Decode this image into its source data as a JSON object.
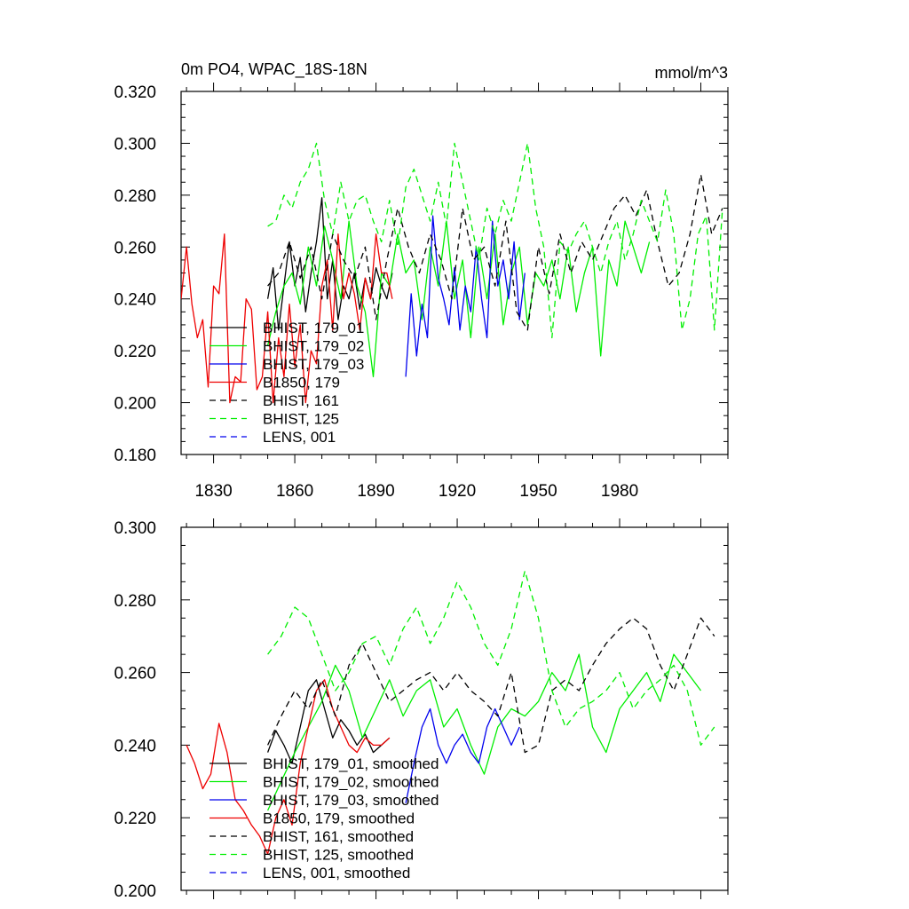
{
  "figure": {
    "title": "0m PO4, WPAC_18S-18N",
    "units": "mmol/m^3"
  },
  "colors": {
    "black": "#000000",
    "green": "#00ee00",
    "blue": "#0000ee",
    "red": "#ee0000"
  },
  "chart_data": [
    {
      "type": "line",
      "title": "0m PO4, WPAC_18S-18N",
      "units": "mmol/m^3",
      "xlim": [
        1818,
        2020
      ],
      "ylim": [
        0.18,
        0.32
      ],
      "xticks": [
        1830,
        1860,
        1890,
        1920,
        1950,
        1980
      ],
      "xtick_labels": [
        "1830",
        "1860",
        "1890",
        "1920",
        "1950",
        "1980"
      ],
      "yticks": [
        0.18,
        0.2,
        0.22,
        0.24,
        0.26,
        0.28,
        0.3,
        0.32
      ],
      "ytick_labels": [
        "0.180",
        "0.200",
        "0.220",
        "0.240",
        "0.260",
        "0.280",
        "0.300",
        "0.320"
      ],
      "legend_position": "bottom-left",
      "series": [
        {
          "name": "BHIST, 179_01",
          "color": "#000000",
          "dash": "solid",
          "x": [
            1850,
            1852,
            1854,
            1856,
            1858,
            1860,
            1862,
            1864,
            1866,
            1868,
            1870,
            1872,
            1874,
            1876,
            1878,
            1880,
            1882,
            1884,
            1886,
            1888,
            1890,
            1892,
            1894,
            1896
          ],
          "y": [
            0.24,
            0.252,
            0.228,
            0.245,
            0.262,
            0.245,
            0.256,
            0.235,
            0.25,
            0.262,
            0.279,
            0.24,
            0.255,
            0.232,
            0.245,
            0.24,
            0.25,
            0.236,
            0.248,
            0.24,
            0.252,
            0.245,
            0.24,
            0.25
          ]
        },
        {
          "name": "BHIST, 179_02",
          "color": "#00ee00",
          "dash": "solid",
          "x": [
            1850,
            1853,
            1856,
            1859,
            1862,
            1865,
            1868,
            1871,
            1874,
            1877,
            1880,
            1883,
            1886,
            1889,
            1892,
            1895,
            1898,
            1901,
            1904,
            1907,
            1910,
            1913,
            1916,
            1919,
            1922,
            1925,
            1928,
            1931,
            1934,
            1937,
            1940,
            1943,
            1946,
            1949,
            1952,
            1955,
            1958,
            1961,
            1964,
            1967,
            1970,
            1973,
            1976,
            1979,
            1982,
            1985,
            1988,
            1991
          ],
          "y": [
            0.222,
            0.235,
            0.245,
            0.25,
            0.238,
            0.26,
            0.245,
            0.268,
            0.255,
            0.24,
            0.27,
            0.245,
            0.235,
            0.21,
            0.25,
            0.245,
            0.265,
            0.25,
            0.255,
            0.232,
            0.26,
            0.245,
            0.27,
            0.24,
            0.255,
            0.225,
            0.26,
            0.24,
            0.265,
            0.23,
            0.25,
            0.26,
            0.23,
            0.25,
            0.245,
            0.255,
            0.24,
            0.26,
            0.235,
            0.25,
            0.26,
            0.218,
            0.255,
            0.245,
            0.27,
            0.26,
            0.25,
            0.262
          ]
        },
        {
          "name": "BHIST, 179_03",
          "color": "#0000ee",
          "dash": "solid",
          "x": [
            1901,
            1903,
            1905,
            1907,
            1909,
            1911,
            1913,
            1915,
            1917,
            1919,
            1921,
            1923,
            1925,
            1927,
            1929,
            1931,
            1933,
            1935,
            1937,
            1939,
            1941,
            1943,
            1945
          ],
          "y": [
            0.21,
            0.242,
            0.218,
            0.238,
            0.225,
            0.272,
            0.248,
            0.24,
            0.23,
            0.252,
            0.228,
            0.245,
            0.235,
            0.26,
            0.24,
            0.225,
            0.27,
            0.245,
            0.255,
            0.24,
            0.262,
            0.232,
            0.25
          ]
        },
        {
          "name": "B1850, 179",
          "color": "#ee0000",
          "dash": "solid",
          "x": [
            1818,
            1820,
            1822,
            1824,
            1826,
            1828,
            1830,
            1832,
            1834,
            1836,
            1838,
            1840,
            1842,
            1844,
            1846,
            1848,
            1850,
            1852,
            1854,
            1856,
            1858,
            1860,
            1862,
            1864,
            1866,
            1868,
            1870,
            1872,
            1874,
            1876,
            1878,
            1880,
            1882,
            1884,
            1886,
            1888,
            1890,
            1892,
            1894,
            1896
          ],
          "y": [
            0.24,
            0.26,
            0.238,
            0.225,
            0.232,
            0.206,
            0.245,
            0.242,
            0.265,
            0.2,
            0.21,
            0.208,
            0.24,
            0.236,
            0.205,
            0.21,
            0.235,
            0.2,
            0.225,
            0.21,
            0.238,
            0.214,
            0.23,
            0.2,
            0.22,
            0.215,
            0.245,
            0.255,
            0.228,
            0.265,
            0.24,
            0.25,
            0.242,
            0.228,
            0.248,
            0.24,
            0.265,
            0.25,
            0.25,
            0.24
          ]
        },
        {
          "name": "BHIST, 161",
          "color": "#000000",
          "dash": "dashed",
          "x": [
            1850,
            1854,
            1858,
            1862,
            1866,
            1870,
            1874,
            1878,
            1882,
            1886,
            1890,
            1894,
            1898,
            1902,
            1906,
            1910,
            1914,
            1918,
            1922,
            1926,
            1930,
            1934,
            1938,
            1942,
            1946,
            1950,
            1954,
            1958,
            1962,
            1966,
            1970,
            1974,
            1978,
            1982,
            1986,
            1990,
            1994,
            1998,
            2002,
            2006,
            2010,
            2014,
            2018
          ],
          "y": [
            0.245,
            0.25,
            0.262,
            0.248,
            0.26,
            0.24,
            0.265,
            0.255,
            0.248,
            0.26,
            0.232,
            0.255,
            0.275,
            0.26,
            0.25,
            0.265,
            0.255,
            0.24,
            0.275,
            0.255,
            0.26,
            0.245,
            0.27,
            0.235,
            0.228,
            0.26,
            0.242,
            0.265,
            0.25,
            0.262,
            0.255,
            0.265,
            0.275,
            0.28,
            0.272,
            0.282,
            0.262,
            0.245,
            0.25,
            0.265,
            0.288,
            0.265,
            0.275
          ]
        },
        {
          "name": "BHIST, 125",
          "color": "#00ee00",
          "dash": "dashed",
          "x": [
            1850,
            1853,
            1856,
            1859,
            1862,
            1865,
            1868,
            1871,
            1874,
            1877,
            1880,
            1883,
            1886,
            1889,
            1892,
            1895,
            1898,
            1901,
            1904,
            1907,
            1910,
            1913,
            1916,
            1919,
            1922,
            1925,
            1928,
            1931,
            1934,
            1937,
            1940,
            1943,
            1946,
            1949,
            1952,
            1955,
            1958,
            1961,
            1964,
            1967,
            1970,
            1973,
            1976,
            1979,
            1982,
            1985,
            1988,
            1991,
            1994,
            1997,
            2000,
            2003,
            2006,
            2009,
            2012,
            2015,
            2018
          ],
          "y": [
            0.268,
            0.27,
            0.28,
            0.275,
            0.285,
            0.29,
            0.3,
            0.278,
            0.265,
            0.285,
            0.27,
            0.278,
            0.28,
            0.27,
            0.262,
            0.278,
            0.26,
            0.283,
            0.29,
            0.28,
            0.27,
            0.285,
            0.268,
            0.3,
            0.285,
            0.27,
            0.255,
            0.275,
            0.265,
            0.278,
            0.27,
            0.285,
            0.3,
            0.275,
            0.26,
            0.225,
            0.262,
            0.258,
            0.265,
            0.27,
            0.26,
            0.25,
            0.262,
            0.27,
            0.255,
            0.265,
            0.278,
            0.27,
            0.262,
            0.282,
            0.265,
            0.228,
            0.24,
            0.265,
            0.272,
            0.228,
            0.275
          ]
        }
      ]
    },
    {
      "type": "line",
      "xlim": [
        1818,
        2020
      ],
      "ylim": [
        0.2,
        0.3
      ],
      "yticks": [
        0.2,
        0.22,
        0.24,
        0.26,
        0.28,
        0.3
      ],
      "ytick_labels": [
        "0.200",
        "0.220",
        "0.240",
        "0.260",
        "0.280",
        "0.300"
      ],
      "legend_position": "bottom-left",
      "series": [
        {
          "name": "BHIST, 179_01, smoothed",
          "color": "#000000",
          "dash": "solid",
          "x": [
            1850,
            1853,
            1856,
            1859,
            1862,
            1865,
            1868,
            1871,
            1874,
            1877,
            1880,
            1883,
            1886,
            1889,
            1892,
            1895
          ],
          "y": [
            0.238,
            0.244,
            0.24,
            0.235,
            0.245,
            0.255,
            0.258,
            0.25,
            0.242,
            0.247,
            0.244,
            0.24,
            0.243,
            0.238,
            0.24,
            0.242
          ]
        },
        {
          "name": "BHIST, 179_02, smoothed",
          "color": "#00ee00",
          "dash": "solid",
          "x": [
            1850,
            1855,
            1860,
            1865,
            1870,
            1875,
            1880,
            1885,
            1890,
            1895,
            1900,
            1905,
            1910,
            1915,
            1920,
            1925,
            1930,
            1935,
            1940,
            1945,
            1950,
            1955,
            1960,
            1965,
            1970,
            1975,
            1980,
            1985,
            1990,
            1995,
            2000,
            2005,
            2010
          ],
          "y": [
            0.222,
            0.23,
            0.238,
            0.245,
            0.252,
            0.262,
            0.255,
            0.242,
            0.25,
            0.258,
            0.248,
            0.255,
            0.258,
            0.245,
            0.25,
            0.24,
            0.232,
            0.245,
            0.25,
            0.248,
            0.252,
            0.26,
            0.255,
            0.265,
            0.245,
            0.238,
            0.25,
            0.255,
            0.26,
            0.252,
            0.265,
            0.26,
            0.255
          ]
        },
        {
          "name": "BHIST, 179_03, smoothed",
          "color": "#0000ee",
          "dash": "solid",
          "x": [
            1901,
            1904,
            1907,
            1910,
            1913,
            1916,
            1919,
            1922,
            1925,
            1928,
            1931,
            1934,
            1937,
            1940,
            1943
          ],
          "y": [
            0.224,
            0.235,
            0.245,
            0.25,
            0.24,
            0.235,
            0.24,
            0.243,
            0.238,
            0.235,
            0.245,
            0.25,
            0.245,
            0.24,
            0.245
          ]
        },
        {
          "name": "B1850, 179, smoothed",
          "color": "#ee0000",
          "dash": "solid",
          "x": [
            1820,
            1823,
            1826,
            1829,
            1832,
            1835,
            1838,
            1841,
            1844,
            1847,
            1850,
            1853,
            1856,
            1859,
            1862,
            1865,
            1868,
            1871,
            1874,
            1877,
            1880,
            1883,
            1886,
            1889,
            1892,
            1895
          ],
          "y": [
            0.24,
            0.235,
            0.228,
            0.232,
            0.246,
            0.238,
            0.225,
            0.222,
            0.218,
            0.215,
            0.21,
            0.22,
            0.225,
            0.218,
            0.235,
            0.245,
            0.255,
            0.258,
            0.25,
            0.245,
            0.24,
            0.238,
            0.242,
            0.24,
            0.24,
            0.242
          ]
        },
        {
          "name": "BHIST, 161, smoothed",
          "color": "#000000",
          "dash": "dashed",
          "x": [
            1850,
            1855,
            1860,
            1865,
            1870,
            1875,
            1880,
            1885,
            1890,
            1895,
            1900,
            1905,
            1910,
            1915,
            1920,
            1925,
            1930,
            1935,
            1940,
            1945,
            1950,
            1955,
            1960,
            1965,
            1970,
            1975,
            1980,
            1985,
            1990,
            1995,
            2000,
            2005,
            2010,
            2015
          ],
          "y": [
            0.24,
            0.248,
            0.255,
            0.25,
            0.258,
            0.248,
            0.262,
            0.268,
            0.26,
            0.252,
            0.255,
            0.258,
            0.26,
            0.255,
            0.26,
            0.255,
            0.252,
            0.248,
            0.26,
            0.238,
            0.24,
            0.255,
            0.258,
            0.255,
            0.262,
            0.268,
            0.272,
            0.275,
            0.272,
            0.262,
            0.255,
            0.265,
            0.275,
            0.27
          ]
        },
        {
          "name": "BHIST, 125, smoothed",
          "color": "#00ee00",
          "dash": "dashed",
          "x": [
            1850,
            1855,
            1860,
            1865,
            1870,
            1875,
            1880,
            1885,
            1890,
            1895,
            1900,
            1905,
            1910,
            1915,
            1920,
            1925,
            1930,
            1935,
            1940,
            1945,
            1950,
            1955,
            1960,
            1965,
            1970,
            1975,
            1980,
            1985,
            1990,
            1995,
            2000,
            2005,
            2010,
            2015
          ],
          "y": [
            0.265,
            0.27,
            0.278,
            0.275,
            0.265,
            0.255,
            0.26,
            0.268,
            0.27,
            0.262,
            0.272,
            0.278,
            0.268,
            0.275,
            0.285,
            0.278,
            0.268,
            0.262,
            0.272,
            0.288,
            0.275,
            0.255,
            0.245,
            0.25,
            0.252,
            0.255,
            0.26,
            0.25,
            0.255,
            0.258,
            0.262,
            0.255,
            0.24,
            0.245
          ]
        }
      ]
    }
  ]
}
